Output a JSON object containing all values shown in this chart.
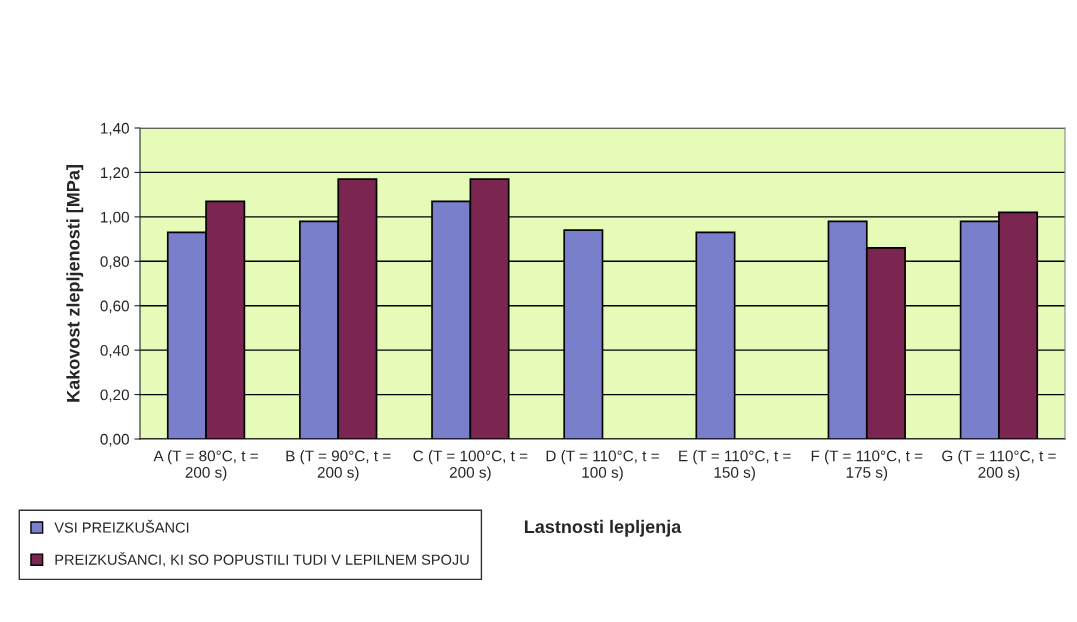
{
  "chart_data": {
    "type": "bar",
    "xlabel": "Lastnosti lepljenja",
    "ylabel": "Kakovost zlepljenosti [MPa]",
    "categories": [
      "A (T = 80°C, t = 200 s)",
      "B (T = 90°C, t = 200 s)",
      "C (T = 100°C, t = 200 s)",
      "D (T = 110°C, t = 100 s)",
      "E (T = 110°C, t = 150 s)",
      "F (T = 110°C, t = 175 s)",
      "G (T = 110°C, t = 200 s)"
    ],
    "series": [
      {
        "name": "VSI PREIZKUŠANCI",
        "color": "#7a7fcc",
        "values": [
          0.93,
          0.98,
          1.07,
          0.94,
          0.93,
          0.98,
          0.98
        ]
      },
      {
        "name": "PREIZKUŠANCI, KI SO POPUSTILI TUDI V LEPILNEM SPOJU",
        "color": "#7a2650",
        "values": [
          1.07,
          1.17,
          1.17,
          null,
          null,
          0.86,
          1.02
        ]
      }
    ],
    "ylim": [
      0,
      1.4
    ],
    "yticks": [
      {
        "value": 0,
        "label": "0,00"
      },
      {
        "value": 0.2,
        "label": "0,20"
      },
      {
        "value": 0.4,
        "label": "0,40"
      },
      {
        "value": 0.6,
        "label": "0,60"
      },
      {
        "value": 0.8,
        "label": "0,80"
      },
      {
        "value": 1.0,
        "label": "1,00"
      },
      {
        "value": 1.2,
        "label": "1,20"
      },
      {
        "value": 1.4,
        "label": "1,40"
      }
    ],
    "grid": "y",
    "legend": "bottom left"
  }
}
